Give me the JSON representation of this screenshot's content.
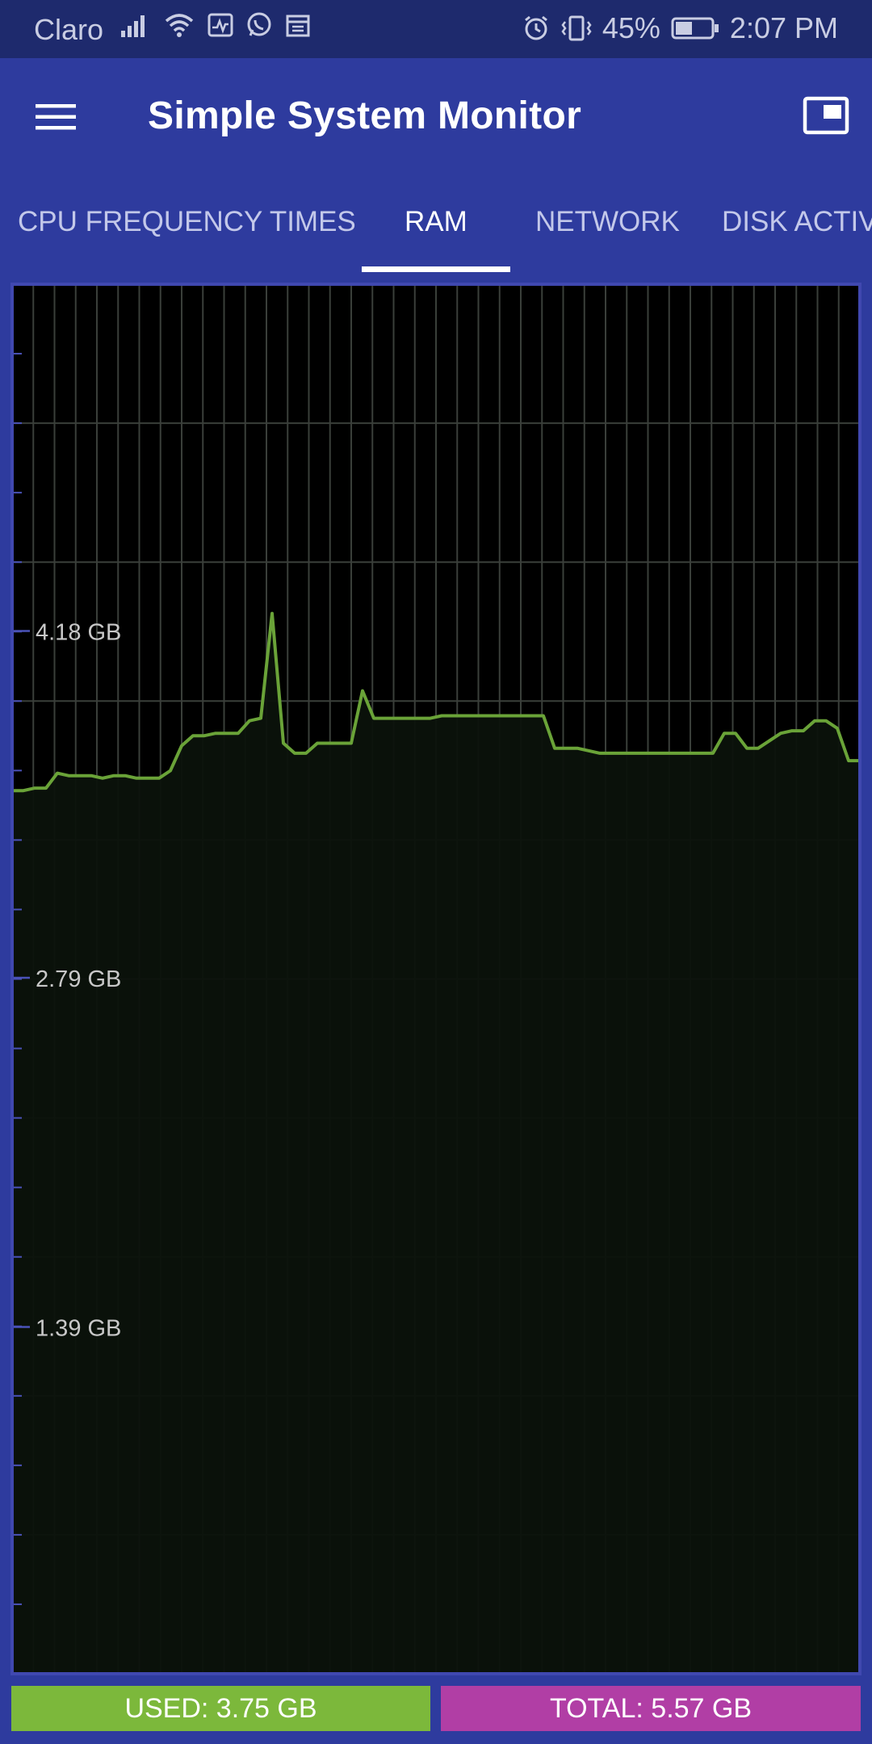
{
  "status_bar": {
    "carrier": "Claro",
    "battery_percent": "45%",
    "time": "2:07 PM",
    "icons": [
      "signal-icon",
      "wifi-icon",
      "activity-icon",
      "whatsapp-icon",
      "calendar-icon",
      "alarm-icon",
      "vibrate-icon",
      "battery-icon"
    ]
  },
  "app_bar": {
    "title": "Simple System Monitor",
    "menu_icon": "menu-icon",
    "pip_icon": "picture-in-picture-icon"
  },
  "tabs": [
    {
      "label": "CPU FREQUENCY TIMES",
      "active": false
    },
    {
      "label": "RAM",
      "active": true
    },
    {
      "label": "NETWORK",
      "active": false
    },
    {
      "label": "DISK ACTIV",
      "active": false
    }
  ],
  "chart_data": {
    "type": "area",
    "series": [
      {
        "values": [
          3.54,
          3.54,
          3.55,
          3.55,
          3.61,
          3.6,
          3.6,
          3.6,
          3.59,
          3.6,
          3.6,
          3.59,
          3.59,
          3.59,
          3.62,
          3.72,
          3.76,
          3.76,
          3.77,
          3.77,
          3.77,
          3.82,
          3.83,
          4.25,
          3.73,
          3.69,
          3.69,
          3.73,
          3.73,
          3.73,
          3.73,
          3.94,
          3.83,
          3.83,
          3.83,
          3.83,
          3.83,
          3.83,
          3.84,
          3.84,
          3.84,
          3.84,
          3.84,
          3.84,
          3.84,
          3.84,
          3.84,
          3.84,
          3.71,
          3.71,
          3.71,
          3.7,
          3.69,
          3.69,
          3.69,
          3.69,
          3.69,
          3.69,
          3.69,
          3.69,
          3.69,
          3.69,
          3.69,
          3.77,
          3.77,
          3.71,
          3.71,
          3.74,
          3.77,
          3.78,
          3.78,
          3.82,
          3.82,
          3.79,
          3.66,
          3.66
        ]
      }
    ],
    "yticks": [
      {
        "value": 4.18,
        "label": "4.18 GB"
      },
      {
        "value": 2.79,
        "label": "2.79 GB"
      },
      {
        "value": 1.39,
        "label": "1.39 GB"
      }
    ],
    "ylim": [
      0,
      5.57
    ],
    "grid": true,
    "colors": {
      "line": "#6aa338",
      "fill": "#0a0f0a",
      "grid": "#3a3f3a",
      "border": "#4048b0",
      "background": "#000000",
      "tick_text": "#c8c8c8"
    }
  },
  "summary": {
    "used_label": "USED: 3.75 GB",
    "total_label": "TOTAL: 5.57 GB"
  },
  "colors": {
    "status_bar": "#1e2a6d",
    "app_bar": "#2e3b9e",
    "used": "#7cb83b",
    "total": "#b13ea5"
  }
}
